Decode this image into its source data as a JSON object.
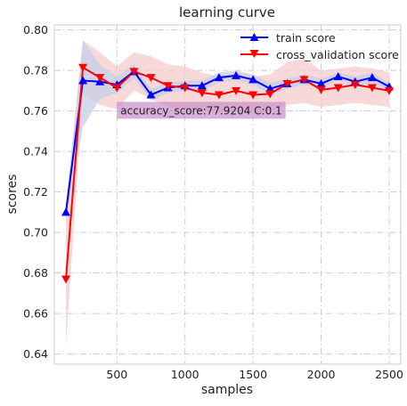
{
  "chart_data": {
    "type": "line",
    "title": "learning curve",
    "xlabel": "samples",
    "ylabel": "scores",
    "xlim": [
      40,
      2585
    ],
    "ylim": [
      0.635,
      0.8025
    ],
    "x_ticks": [
      500,
      1000,
      1500,
      2000,
      2500
    ],
    "x_tick_labels": [
      "500",
      "1000",
      "1500",
      "2000",
      "2500"
    ],
    "y_ticks": [
      0.64,
      0.66,
      0.68,
      0.7,
      0.72,
      0.74,
      0.76,
      0.78,
      0.8
    ],
    "y_tick_labels": [
      "0.64",
      "0.66",
      "0.68",
      "0.70",
      "0.72",
      "0.74",
      "0.76",
      "0.78",
      "0.80"
    ],
    "grid": true,
    "legend_position": "top-right",
    "x": [
      125,
      250,
      375,
      500,
      625,
      750,
      875,
      1000,
      1125,
      1250,
      1375,
      1500,
      1625,
      1750,
      1875,
      2000,
      2125,
      2250,
      2375,
      2500
    ],
    "series": [
      {
        "name": "train score",
        "color": "#0000ff",
        "marker": "triangle-up",
        "values": [
          0.71,
          0.775,
          0.7745,
          0.773,
          0.7795,
          0.768,
          0.7715,
          0.7725,
          0.7725,
          0.7765,
          0.7775,
          0.7755,
          0.771,
          0.7735,
          0.7755,
          0.7735,
          0.777,
          0.7745,
          0.7765,
          0.772
        ],
        "band_lower": [
          0.706,
          0.752,
          0.766,
          0.769,
          0.776,
          0.765,
          0.769,
          0.77,
          0.77,
          0.774,
          0.775,
          0.773,
          0.768,
          0.771,
          0.773,
          0.771,
          0.775,
          0.772,
          0.774,
          0.77
        ],
        "band_upper": [
          0.714,
          0.795,
          0.783,
          0.777,
          0.783,
          0.771,
          0.774,
          0.775,
          0.775,
          0.779,
          0.78,
          0.778,
          0.774,
          0.776,
          0.778,
          0.776,
          0.779,
          0.777,
          0.779,
          0.774
        ],
        "band_color": "#c7cfe8"
      },
      {
        "name": "cross_validation score",
        "color": "#ff0000",
        "marker": "triangle-down",
        "values": [
          0.677,
          0.7815,
          0.7765,
          0.7715,
          0.7795,
          0.7765,
          0.7725,
          0.7715,
          0.769,
          0.768,
          0.77,
          0.768,
          0.7685,
          0.7735,
          0.7755,
          0.7705,
          0.7715,
          0.773,
          0.7715,
          0.77
        ],
        "band_lower": [
          0.644,
          0.768,
          0.763,
          0.761,
          0.77,
          0.766,
          0.762,
          0.761,
          0.76,
          0.759,
          0.761,
          0.759,
          0.76,
          0.763,
          0.764,
          0.762,
          0.763,
          0.764,
          0.763,
          0.762
        ],
        "band_upper": [
          0.71,
          0.795,
          0.789,
          0.782,
          0.789,
          0.787,
          0.783,
          0.782,
          0.779,
          0.777,
          0.779,
          0.777,
          0.778,
          0.784,
          0.786,
          0.78,
          0.781,
          0.782,
          0.781,
          0.779
        ],
        "band_color": "#f4cccc"
      }
    ],
    "annotation": {
      "text": "accuracy_score:77.9204 C:0.1",
      "anchor_x": 500,
      "anchor_y": 0.7575,
      "bg_color": "#c98fc9"
    }
  }
}
